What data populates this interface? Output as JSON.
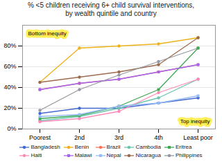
{
  "chart_data": {
    "type": "line",
    "title": "% <5 children receiving 6+ child survival interventions,\nby wealth quintile and country",
    "categories": [
      "Poorest",
      "2nd",
      "3rd",
      "4th",
      "Least poor"
    ],
    "series": [
      {
        "name": "Bangladesh",
        "marker": "circle",
        "values": [
          15,
          20,
          20,
          25,
          30
        ]
      },
      {
        "name": "Benin",
        "marker": "circle",
        "values": [
          45,
          78,
          80,
          82,
          88
        ]
      },
      {
        "name": "Brazil",
        "marker": "circle",
        "values": [
          38,
          44,
          48,
          55,
          62
        ]
      },
      {
        "name": "Cambodia",
        "marker": "circle",
        "values": [
          8,
          12,
          20,
          30,
          48
        ]
      },
      {
        "name": "Eritrea",
        "marker": "square",
        "values": [
          10,
          13,
          22,
          38,
          78
        ]
      },
      {
        "name": "Haiti",
        "marker": "circle",
        "values": [
          7,
          10,
          17,
          35,
          48
        ]
      },
      {
        "name": "Malawi",
        "marker": "square",
        "values": [
          38,
          44,
          48,
          55,
          62
        ]
      },
      {
        "name": "Nepal",
        "marker": "square",
        "values": [
          12,
          14,
          22,
          25,
          32
        ]
      },
      {
        "name": "Nicaragua",
        "marker": "circle",
        "values": [
          45,
          50,
          55,
          62,
          88
        ]
      },
      {
        "name": "Philippines",
        "marker": "circle",
        "values": [
          18,
          38,
          52,
          65,
          78
        ]
      }
    ],
    "ylim": [
      0,
      100
    ],
    "yticks": [
      {
        "value": 0,
        "label": "0%"
      },
      {
        "value": 20,
        "label": "20%"
      },
      {
        "value": 40,
        "label": "40%"
      },
      {
        "value": 60,
        "label": "60%"
      },
      {
        "value": 80,
        "label": "80%"
      }
    ],
    "grid": true,
    "legend": "bottom",
    "annotations": [
      "Bottom inequity",
      "Top inequity"
    ]
  }
}
